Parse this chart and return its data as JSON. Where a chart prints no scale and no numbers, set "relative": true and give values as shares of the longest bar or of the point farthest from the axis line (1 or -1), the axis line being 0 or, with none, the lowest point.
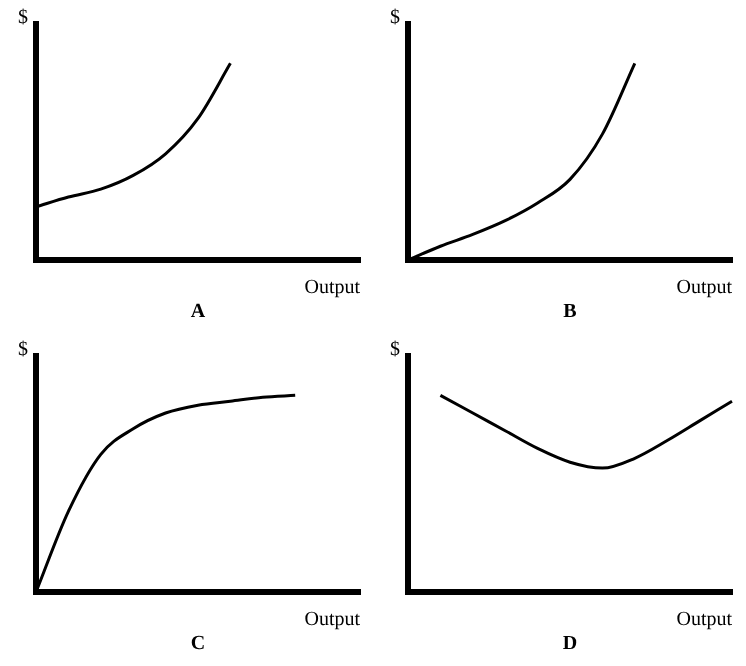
{
  "chart_data": [
    {
      "type": "line",
      "title": "A",
      "xlabel": "Output",
      "ylabel": "$",
      "categories": [
        null,
        null,
        null,
        null,
        null,
        null,
        null,
        null,
        null,
        null,
        null
      ],
      "values": [
        0.27,
        0.32,
        0.36,
        0.43,
        0.54,
        0.72,
        1,
        null,
        null,
        null,
        null
      ],
      "color": "#000000",
      "relative": true,
      "marker": "none",
      "tick_labels": false
    },
    {
      "type": "line",
      "title": "B",
      "xlabel": "Output",
      "ylabel": "$",
      "categories": [
        null,
        null,
        null,
        null,
        null,
        null,
        null,
        null,
        null,
        null,
        null
      ],
      "values": [
        0,
        0.07,
        0.13,
        0.2,
        0.29,
        0.41,
        0.64,
        1,
        null,
        null,
        null
      ],
      "color": "#000000",
      "relative": true,
      "marker": "none",
      "tick_labels": false
    },
    {
      "type": "line",
      "title": "C",
      "xlabel": "Output",
      "ylabel": "$",
      "categories": [
        null,
        null,
        null,
        null,
        null,
        null,
        null,
        null,
        null,
        null,
        null
      ],
      "values": [
        0,
        0.41,
        0.7,
        0.83,
        0.91,
        0.95,
        0.97,
        0.99,
        1,
        null,
        null
      ],
      "color": "#000000",
      "relative": true,
      "marker": "none",
      "tick_labels": false
    },
    {
      "type": "line",
      "title": "D",
      "xlabel": "Output",
      "ylabel": "$",
      "categories": [
        null,
        null,
        null,
        null,
        null,
        null,
        null,
        null,
        null,
        null,
        null
      ],
      "values": [
        null,
        1,
        0.91,
        0.82,
        0.73,
        0.66,
        0.63,
        0.68,
        0.77,
        0.87,
        0.97
      ],
      "color": "#000000",
      "relative": true,
      "marker": "none",
      "tick_labels": false
    }
  ]
}
